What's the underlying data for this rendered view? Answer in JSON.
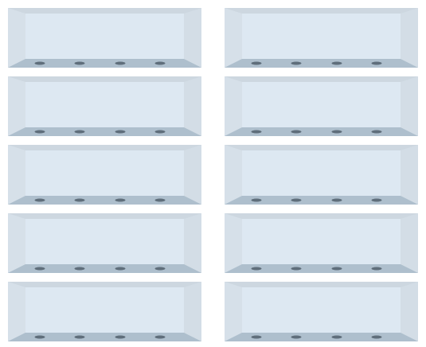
{
  "palette": {
    "outer": "#c9d5df",
    "top": "#cdd7e0",
    "left": "#d6e0e9",
    "right": "#d3dde6",
    "bottom": "#aebfcd",
    "face": "#dde8f2",
    "hole": "#5f6e7b"
  },
  "tiles": [
    {
      "id": "tile-1",
      "holes": 4
    },
    {
      "id": "tile-2",
      "holes": 4
    },
    {
      "id": "tile-3",
      "holes": 4
    },
    {
      "id": "tile-4",
      "holes": 4
    },
    {
      "id": "tile-5",
      "holes": 4
    },
    {
      "id": "tile-6",
      "holes": 4
    },
    {
      "id": "tile-7",
      "holes": 4
    },
    {
      "id": "tile-8",
      "holes": 4
    },
    {
      "id": "tile-9",
      "holes": 4
    },
    {
      "id": "tile-10",
      "holes": 4
    }
  ]
}
